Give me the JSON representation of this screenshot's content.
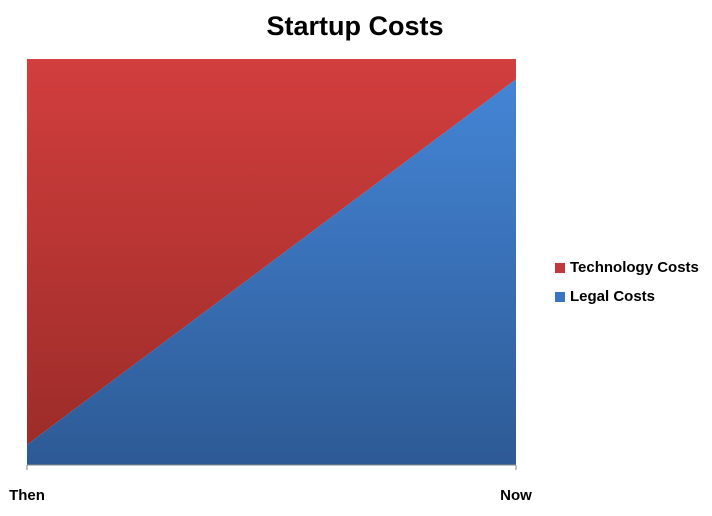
{
  "chart_data": {
    "type": "stacked-area",
    "title": "Startup Costs",
    "categories": [
      "Then",
      "Now"
    ],
    "series": [
      {
        "name": "Legal Costs",
        "color": "#3a74c4",
        "values": [
          5,
          95
        ]
      },
      {
        "name": "Technology Costs",
        "color": "#c0393a",
        "values": [
          95,
          5
        ]
      }
    ],
    "ylim": [
      0,
      100
    ],
    "legend": "right"
  }
}
